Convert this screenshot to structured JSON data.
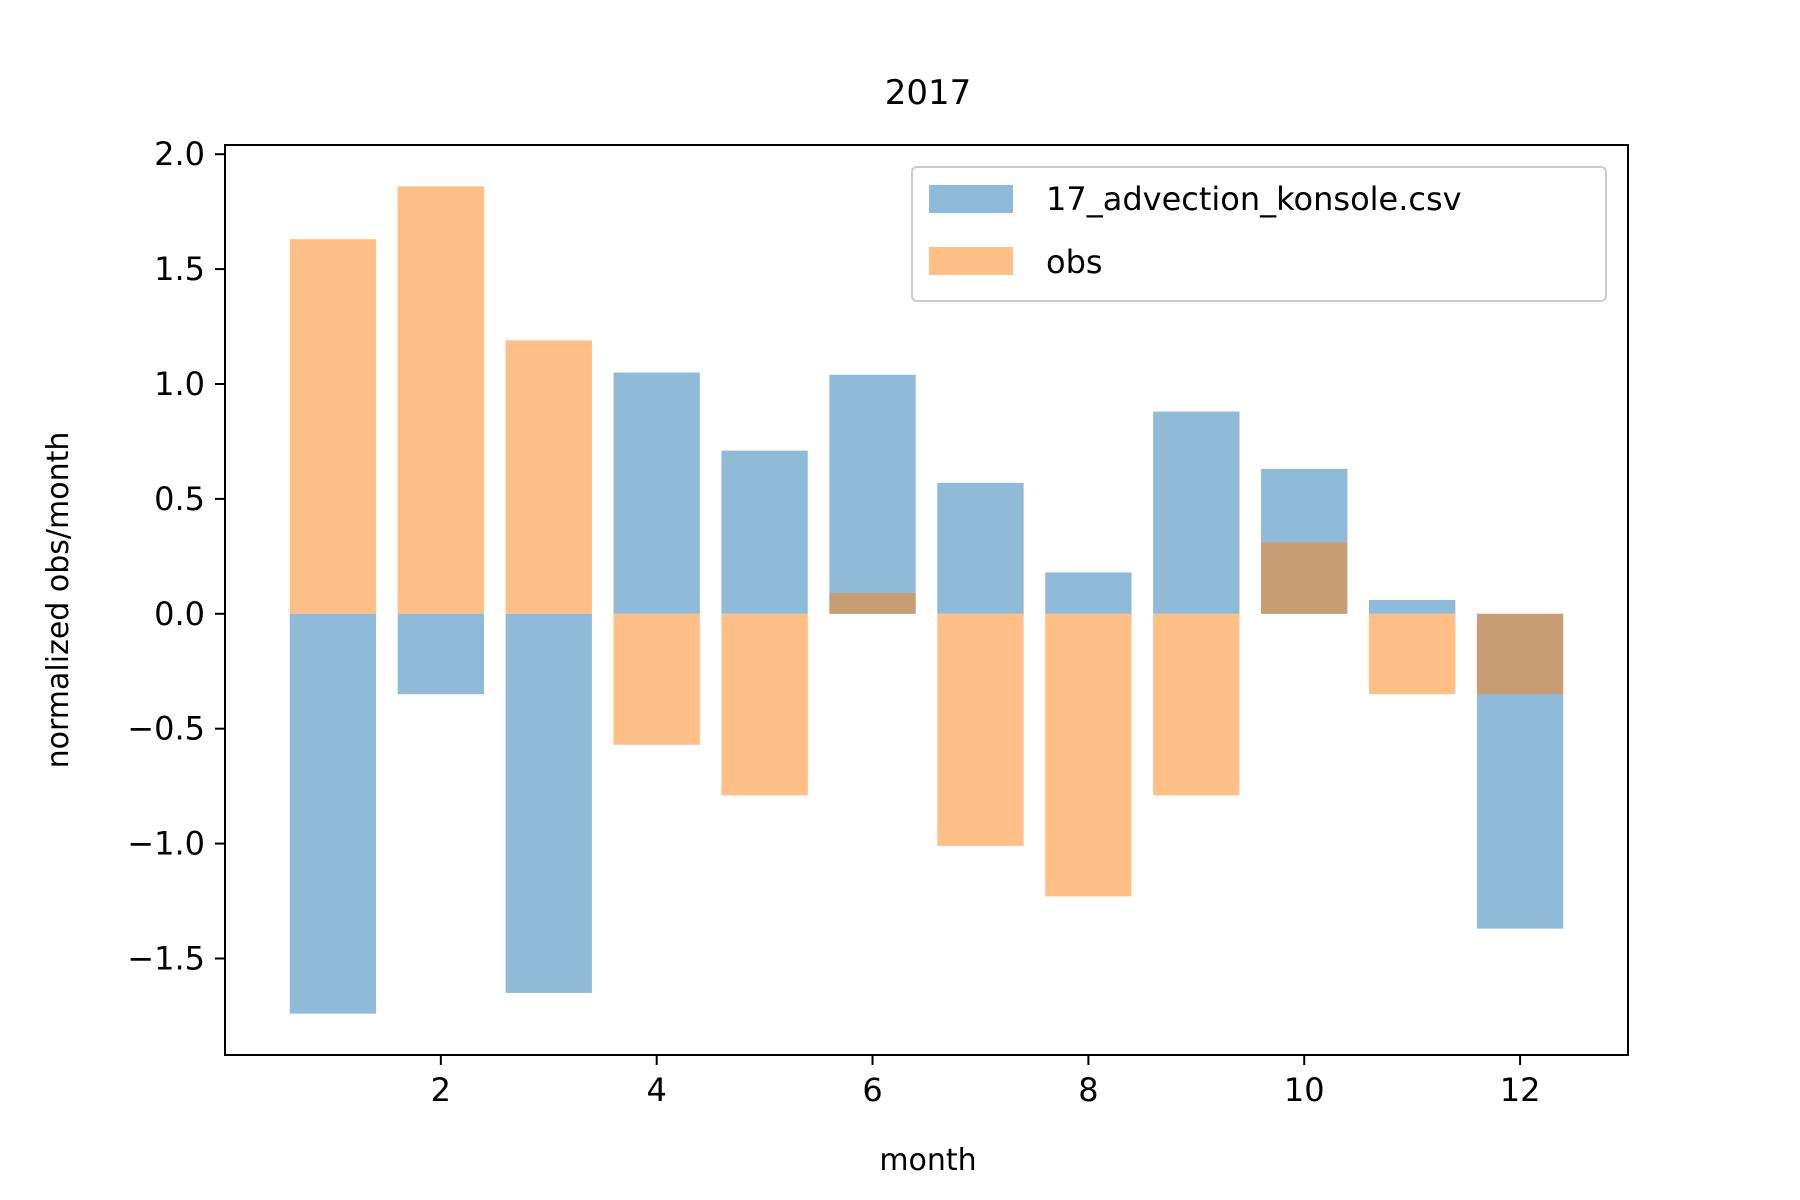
{
  "chart_data": {
    "type": "bar",
    "title": "2017",
    "xlabel": "month",
    "ylabel": "normalized obs/month",
    "xlim": [
      0.0,
      13.0
    ],
    "ylim": [
      -1.92,
      2.04
    ],
    "x_ticks": [
      2,
      4,
      6,
      8,
      10,
      12
    ],
    "x_tick_labels": [
      "2",
      "4",
      "6",
      "8",
      "10",
      "12"
    ],
    "y_ticks": [
      -1.5,
      -1.0,
      -0.5,
      0.0,
      0.5,
      1.0,
      1.5,
      2.0
    ],
    "y_tick_labels": [
      "−1.5",
      "−1.0",
      "−0.5",
      "0.0",
      "0.5",
      "1.0",
      "1.5",
      "2.0"
    ],
    "bar_width": 0.8,
    "x": [
      1,
      2,
      3,
      4,
      5,
      6,
      7,
      8,
      9,
      10,
      11,
      12
    ],
    "series": [
      {
        "name": "17_advection_konsole.csv",
        "color": "#1f77b4",
        "alpha": 0.5,
        "values": [
          -1.74,
          -0.35,
          -1.65,
          1.05,
          0.71,
          1.04,
          0.57,
          0.18,
          0.88,
          0.63,
          0.06,
          -1.37
        ]
      },
      {
        "name": "obs",
        "color": "#ff7f0e",
        "alpha": 0.5,
        "values": [
          1.63,
          1.86,
          1.19,
          -0.57,
          -0.79,
          0.09,
          -1.01,
          -1.23,
          -0.79,
          0.31,
          -0.35,
          -0.35
        ]
      }
    ],
    "grid": false,
    "legend_position": "top-right"
  }
}
